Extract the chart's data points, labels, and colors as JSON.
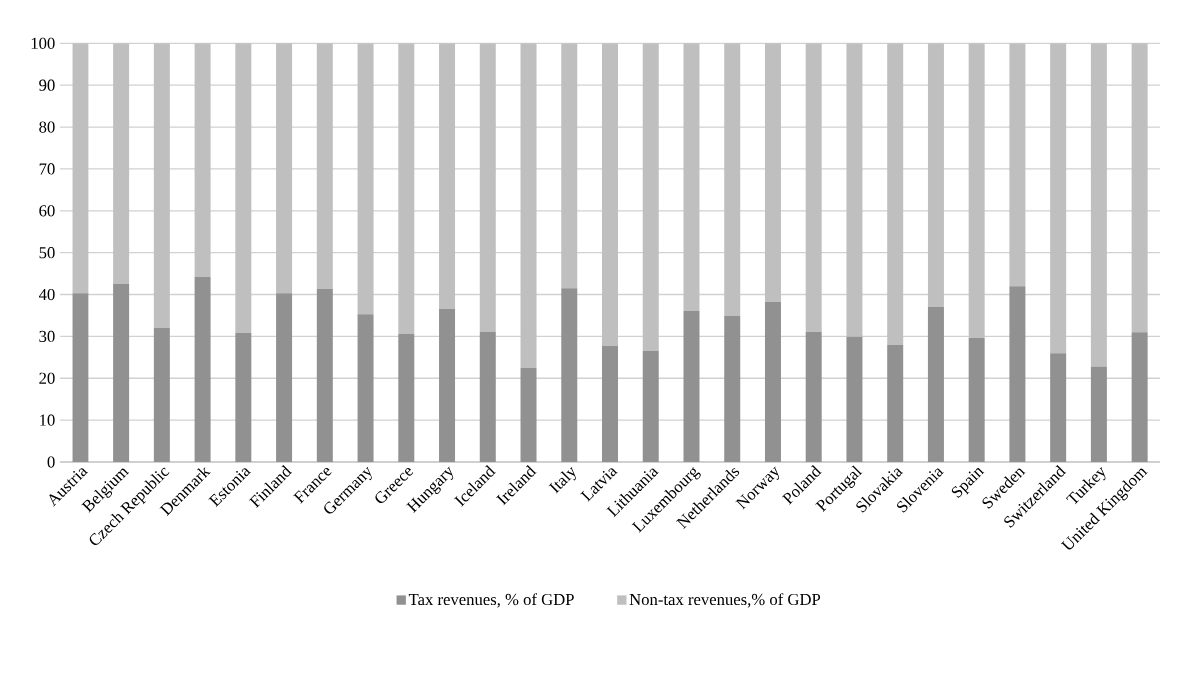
{
  "chart_data": {
    "type": "bar",
    "stacked": true,
    "categories": [
      "Austria",
      "Belgium",
      "Czech Republic",
      "Denmark",
      "Estonia",
      "Finland",
      "France",
      "Germany",
      "Greece",
      "Hungary",
      "Iceland",
      "Ireland",
      "Italy",
      "Latvia",
      "Lithuania",
      "Luxembourg",
      "Netherlands",
      "Norway",
      "Poland",
      "Portugal",
      "Slovakia",
      "Slovenia",
      "Spain",
      "Sweden",
      "Switzerland",
      "Turkey",
      "United Kingdom"
    ],
    "series": [
      {
        "name": "Tax revenues, % of GDP",
        "color": "#919191",
        "values": [
          40.3,
          42.6,
          32.0,
          44.2,
          30.8,
          40.3,
          41.3,
          35.3,
          30.6,
          36.6,
          31.1,
          22.5,
          41.5,
          27.7,
          26.6,
          36.1,
          34.9,
          38.2,
          31.1,
          29.9,
          28.0,
          37.0,
          29.6,
          42.0,
          26.0,
          22.8,
          31.0
        ]
      },
      {
        "name": "Non-tax revenues,% of GDP",
        "color": "#bfbfbf",
        "values": [
          59.7,
          57.4,
          68.0,
          55.8,
          69.2,
          59.7,
          58.7,
          64.7,
          69.4,
          63.4,
          68.9,
          77.5,
          58.5,
          72.3,
          73.4,
          63.9,
          65.1,
          61.8,
          68.9,
          70.1,
          72.0,
          63.0,
          70.4,
          58.0,
          74.0,
          77.2,
          69.0
        ]
      }
    ],
    "ylim": [
      0,
      100
    ],
    "yticks": [
      0,
      10,
      20,
      30,
      40,
      50,
      60,
      70,
      80,
      90,
      100
    ],
    "grid": "y",
    "legend": "bottom"
  }
}
